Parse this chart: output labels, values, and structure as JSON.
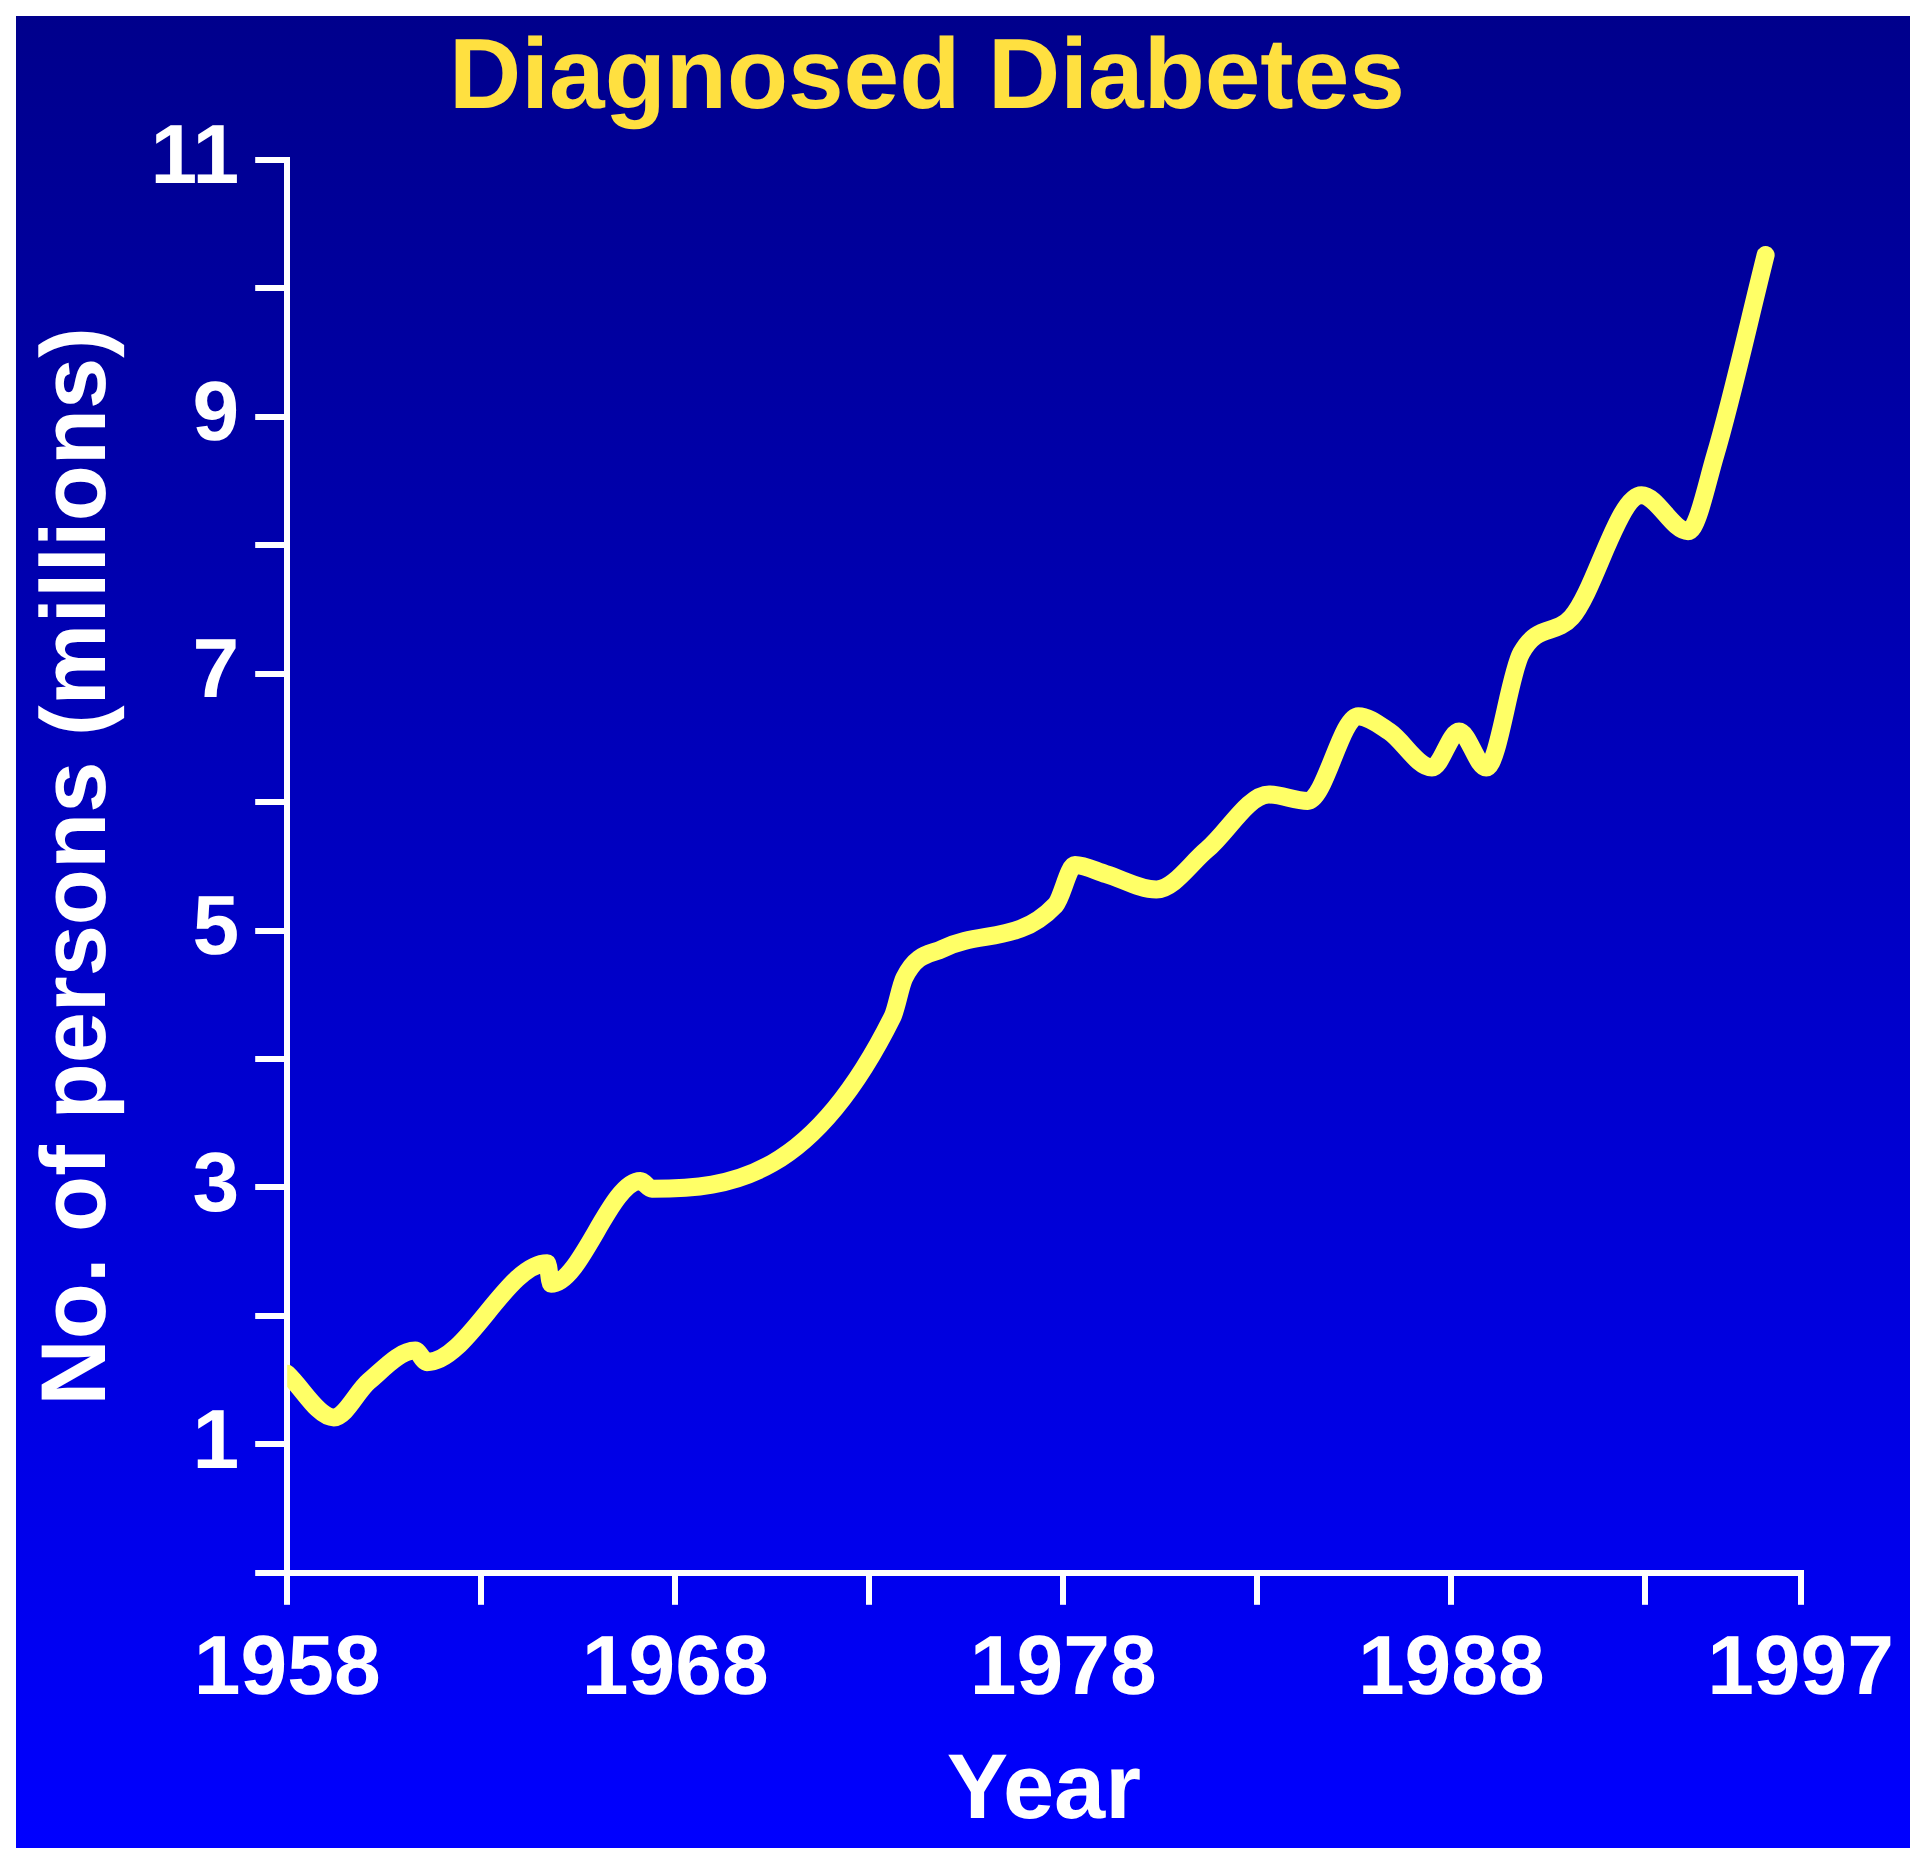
{
  "chart_data": {
    "type": "line",
    "title": "Diagnosed Diabetes",
    "xlabel": "Year",
    "ylabel": "No. of persons (millions)",
    "x": [
      1958,
      1959.2,
      1960.1,
      1961.3,
      1961.6,
      1964.7,
      1964.8,
      1967.1,
      1967.4,
      1973.6,
      1973.9,
      1974.9,
      1977.8,
      1978.3,
      1979.1,
      1980.4,
      1981.7,
      1983.3,
      1984.3,
      1985.6,
      1986.4,
      1987.5,
      1988.2,
      1988.9,
      1989.8,
      1991.1,
      1992.9,
      1994.1,
      1994.8,
      1996.1
    ],
    "series": [
      {
        "color": "#ffff66",
        "values": [
          1.55,
          1.21,
          1.49,
          1.73,
          1.64,
          2.41,
          2.25,
          3.05,
          2.99,
          4.33,
          4.63,
          4.86,
          5.2,
          5.51,
          5.44,
          5.32,
          5.63,
          6.06,
          6.01,
          6.67,
          6.55,
          6.27,
          6.55,
          6.27,
          7.16,
          7.44,
          8.39,
          8.11,
          8.7,
          10.26
        ]
      }
    ],
    "xlim": [
      1958,
      1997
    ],
    "xticks": [
      1958,
      {
        "value": 1963,
        "label": null
      },
      1968,
      {
        "value": 1973,
        "label": null
      },
      1978,
      {
        "value": 1983,
        "label": null
      },
      1988,
      {
        "value": 1993,
        "label": null
      },
      1997
    ],
    "ylim": [
      0,
      11
    ],
    "yticks": [
      {
        "value": 0,
        "label": null
      },
      1,
      {
        "value": 2,
        "label": null
      },
      3,
      {
        "value": 4,
        "label": null
      },
      5,
      {
        "value": 6,
        "label": null
      },
      7,
      {
        "value": 8,
        "label": null
      },
      9,
      {
        "value": 10,
        "label": null
      },
      11
    ],
    "grid": false,
    "legend": false,
    "marker": "none",
    "line_style": "solid"
  }
}
